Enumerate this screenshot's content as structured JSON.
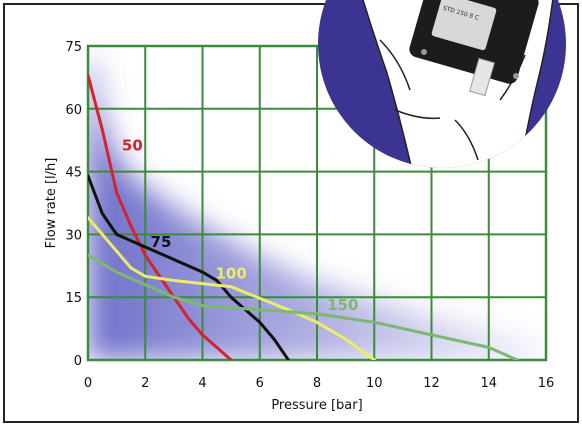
{
  "chart_data": {
    "type": "line",
    "xlabel": "Pressure [bar]",
    "ylabel": "Flow rate [l/h]",
    "xlim": [
      0,
      16
    ],
    "ylim": [
      0,
      75
    ],
    "xticks": [
      0,
      2,
      4,
      6,
      8,
      10,
      12,
      14,
      16
    ],
    "yticks": [
      0,
      15,
      30,
      45,
      60,
      75
    ],
    "grid": true,
    "series": [
      {
        "name": "50",
        "color": "#d3232e",
        "points": [
          [
            0,
            68
          ],
          [
            0.5,
            55
          ],
          [
            1,
            40
          ],
          [
            1.5,
            32
          ],
          [
            2,
            25
          ],
          [
            2.5,
            20
          ],
          [
            3,
            15
          ],
          [
            3.5,
            10
          ],
          [
            4,
            6
          ],
          [
            4.5,
            3
          ],
          [
            5,
            0
          ]
        ]
      },
      {
        "name": "75",
        "color": "#111111",
        "points": [
          [
            0,
            44
          ],
          [
            0.5,
            35
          ],
          [
            1,
            30
          ],
          [
            2,
            27
          ],
          [
            3,
            24
          ],
          [
            4,
            21
          ],
          [
            4.5,
            19
          ],
          [
            5,
            15
          ],
          [
            6,
            9
          ],
          [
            6.5,
            5
          ],
          [
            7,
            0
          ]
        ]
      },
      {
        "name": "100",
        "color": "#ecec6a",
        "points": [
          [
            0,
            34
          ],
          [
            0.5,
            30
          ],
          [
            1,
            26
          ],
          [
            1.5,
            22
          ],
          [
            2,
            20
          ],
          [
            3,
            19
          ],
          [
            5,
            17.5
          ],
          [
            7,
            12
          ],
          [
            8,
            9
          ],
          [
            9,
            5
          ],
          [
            10,
            0
          ]
        ]
      },
      {
        "name": "150",
        "color": "#7db870",
        "points": [
          [
            0,
            25
          ],
          [
            1,
            21
          ],
          [
            2,
            18
          ],
          [
            3,
            15
          ],
          [
            4,
            13
          ],
          [
            6,
            12
          ],
          [
            8,
            11
          ],
          [
            10,
            9
          ],
          [
            12,
            6
          ],
          [
            14,
            3
          ],
          [
            15,
            0
          ]
        ]
      }
    ]
  },
  "inset": {
    "device_label": "STD 250 8 C"
  }
}
